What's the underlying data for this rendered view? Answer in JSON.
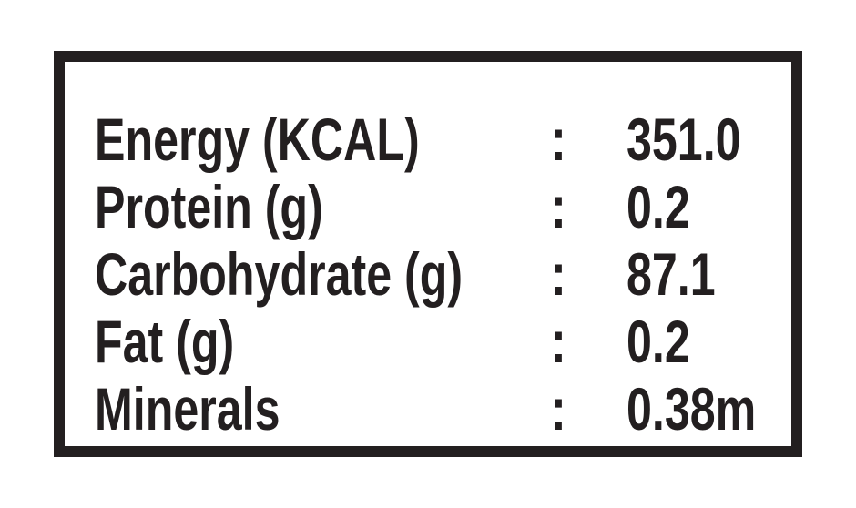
{
  "table": {
    "rows": [
      [
        "Energy (KCAL)",
        ":",
        "351.0"
      ],
      [
        "Protein (g)",
        ":",
        "0.2"
      ],
      [
        "Carbohydrate (g)",
        ":",
        "87.1"
      ],
      [
        "Fat (g)",
        ":",
        "0.2"
      ],
      [
        "Minerals",
        ":",
        "0.38m"
      ]
    ]
  }
}
